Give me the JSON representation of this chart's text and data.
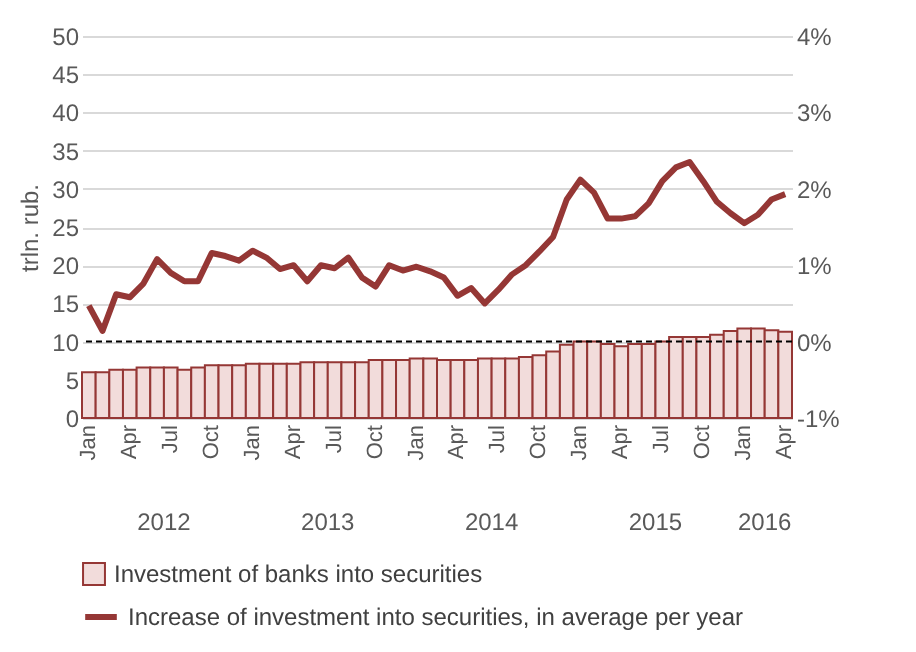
{
  "chart_data": {
    "type": "bar",
    "ylabel": "trln. rub.",
    "categories": [
      "Jan",
      null,
      null,
      "Apr",
      null,
      null,
      "Jul",
      null,
      null,
      "Oct",
      null,
      null,
      "Jan",
      null,
      null,
      "Apr",
      null,
      null,
      "Jul",
      null,
      null,
      "Oct",
      null,
      null,
      "Jan",
      null,
      null,
      "Apr",
      null,
      null,
      "Jul",
      null,
      null,
      "Oct",
      null,
      null,
      "Jan",
      null,
      null,
      "Apr",
      null,
      null,
      "Jul",
      null,
      null,
      "Oct",
      null,
      null,
      "Jan",
      null,
      null,
      "Apr"
    ],
    "series": [
      {
        "name": "Investment of banks into securities",
        "color": "#f2dcdb",
        "values": [
          6.0,
          6.0,
          6.3,
          6.3,
          6.6,
          6.6,
          6.6,
          6.3,
          6.6,
          6.9,
          6.9,
          6.9,
          7.1,
          7.1,
          7.1,
          7.1,
          7.3,
          7.3,
          7.3,
          7.3,
          7.3,
          7.6,
          7.6,
          7.6,
          7.8,
          7.8,
          7.6,
          7.6,
          7.6,
          7.8,
          7.8,
          7.8,
          8.0,
          8.2,
          8.7,
          9.6,
          10.0,
          10.0,
          9.7,
          9.4,
          9.7,
          9.7,
          10.0,
          10.6,
          10.6,
          10.6,
          10.9,
          11.4,
          11.7,
          11.7,
          11.5,
          11.3
        ]
      },
      {
        "name": "Increase of investment into securities, in average per year",
        "type": "line",
        "axis": "y2",
        "color": "#953735",
        "values": [
          0.47,
          0.14,
          0.62,
          0.58,
          0.76,
          1.08,
          0.9,
          0.79,
          0.79,
          1.16,
          1.12,
          1.06,
          1.19,
          1.1,
          0.95,
          1.0,
          0.79,
          1.0,
          0.96,
          1.1,
          0.84,
          0.72,
          1.0,
          0.93,
          0.98,
          0.92,
          0.84,
          0.6,
          0.7,
          0.5,
          0.68,
          0.88,
          1.0,
          1.18,
          1.37,
          1.86,
          2.12,
          1.95,
          1.61,
          1.61,
          1.64,
          1.81,
          2.1,
          2.28,
          2.35,
          2.1,
          1.83,
          1.68,
          1.55,
          1.66,
          1.86,
          1.93
        ]
      }
    ],
    "ylim": [
      0,
      50
    ],
    "yticks": [
      0,
      5,
      10,
      15,
      20,
      25,
      30,
      35,
      40,
      45,
      50
    ],
    "y2lim": [
      -1,
      4
    ],
    "y2ticks": [
      {
        "value": -1,
        "label": "-1%"
      },
      {
        "value": 0,
        "label": "0%"
      },
      {
        "value": 1,
        "label": "1%"
      },
      {
        "value": 2,
        "label": "2%"
      },
      {
        "value": 3,
        "label": "3%"
      },
      {
        "value": 4,
        "label": "4%"
      }
    ],
    "ref_lines": [
      {
        "axis": "y2",
        "value": 0,
        "color": "#000000",
        "line_style": "dashed"
      }
    ],
    "annotations": [
      "2012",
      "2013",
      "2014",
      "2015",
      "2016"
    ],
    "grid": "y",
    "legend": "bottom"
  }
}
